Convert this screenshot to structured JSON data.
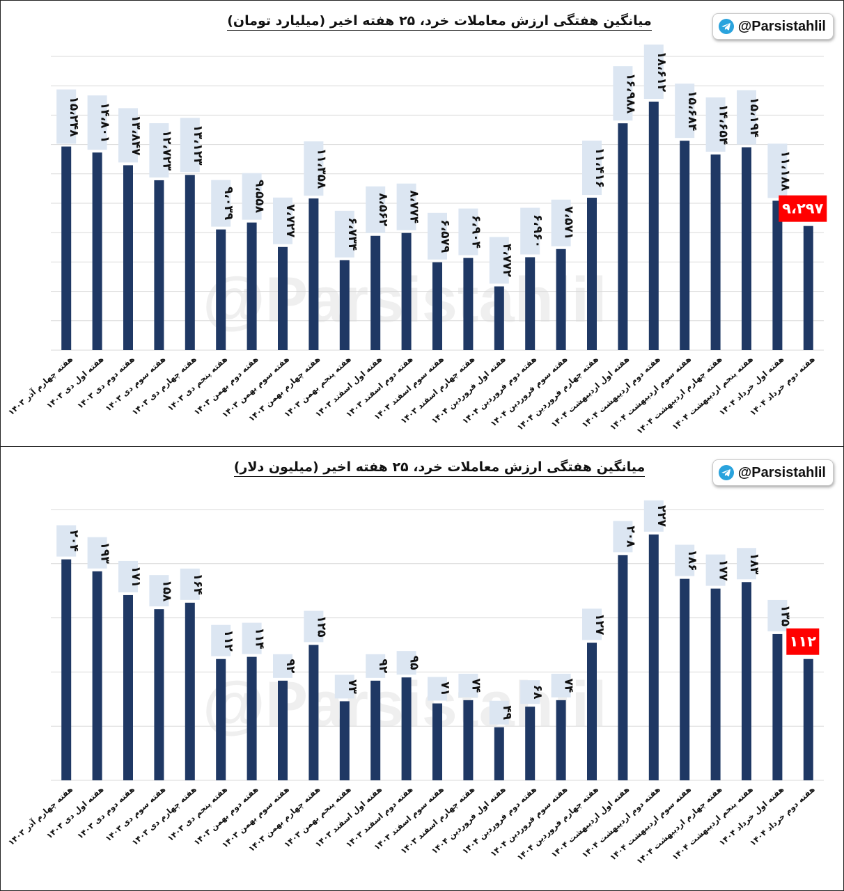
{
  "branding": {
    "handle": "@Parsistahlil",
    "watermark": "@Parsistahlil"
  },
  "colors": {
    "bar": "#1f3864",
    "highlight": "#ff0000",
    "label_bg": "#dce6f2",
    "grid": "#d9d9d9"
  },
  "chart_data": [
    {
      "type": "bar",
      "title": "میانگین هفتگی ارزش معاملات خرد، ۲۵ هفته اخیر (میلیارد تومان)",
      "categories": [
        "هفته چهارم آذر ۱۴۰۳",
        "هفته اول دی ۱۴۰۳",
        "هفته دوم دی ۱۴۰۳",
        "هفته سوم دی ۱۴۰۳",
        "هفته چهارم دی ۱۴۰۳",
        "هفته پنجم دی ۱۴۰۳",
        "هفته دوم بهمن ۱۴۰۳",
        "هفته سوم بهمن ۱۴۰۳",
        "هفته چهارم بهمن ۱۴۰۳",
        "هفته پنجم بهمن ۱۴۰۳",
        "هفته اول اسفند ۱۴۰۳",
        "هفته دوم اسفند ۱۴۰۳",
        "هفته سوم اسفند ۱۴۰۳",
        "هفته چهارم اسفند ۱۴۰۳",
        "هفته اول فروردین ۱۴۰۴",
        "هفته دوم فروردین ۱۴۰۴",
        "هفته سوم فروردین ۱۴۰۴",
        "هفته چهارم فروردین ۱۴۰۴",
        "هفته اول اردیبهشت ۱۴۰۴",
        "هفته دوم اردیبهشت ۱۴۰۴",
        "هفته سوم اردیبهشت ۱۴۰۴",
        "هفته چهارم اردیبهشت ۱۴۰۴",
        "هفته پنجم اردیبهشت ۱۴۰۴",
        "هفته اول خرداد ۱۴۰۴",
        "هفته دوم خرداد ۱۴۰۴"
      ],
      "values": [
        15248,
        14801,
        13847,
        12723,
        13123,
        9039,
        9558,
        7727,
        11358,
        6734,
        8562,
        8774,
        6579,
        6904,
        4772,
        6960,
        7571,
        11416,
        16988,
        18612,
        15684,
        14654,
        15194,
        11188,
        9297
      ],
      "labels": [
        "۱۵،۲۴۸",
        "۱۴،۸۰۱",
        "۱۳،۸۴۷",
        "۱۲،۷۲۳",
        "۱۳،۱۲۳",
        "۹،۰۳۹",
        "۹،۵۵۸",
        "۷،۷۲۷",
        "۱۱،۳۵۸",
        "۶،۷۳۴",
        "۸،۵۶۲",
        "۸،۷۷۴",
        "۶،۵۷۹",
        "۶،۹۰۴",
        "۴،۷۷۲",
        "۶،۹۶۰",
        "۷،۵۷۱",
        "۱۱،۴۱۶",
        "۱۶،۹۸۸",
        "۱۸،۶۱۲",
        "۱۵،۶۸۴",
        "۱۴،۶۵۴",
        "۱۵،۱۹۴",
        "۱۱،۱۸۸",
        "۹،۲۹۷"
      ],
      "highlight_index": 24,
      "ylim": [
        0,
        22000
      ],
      "grid": true
    },
    {
      "type": "bar",
      "title": "میانگین هفتگی ارزش معاملات خرد، ۲۵ هفته اخیر (میلیون دلار)",
      "categories": [
        "هفته چهارم آذر ۱۴۰۳",
        "هفته اول دی ۱۴۰۳",
        "هفته دوم دی ۱۴۰۳",
        "هفته سوم دی ۱۴۰۳",
        "هفته چهارم دی ۱۴۰۳",
        "هفته پنجم دی ۱۴۰۳",
        "هفته دوم بهمن ۱۴۰۳",
        "هفته سوم بهمن ۱۴۰۳",
        "هفته چهارم بهمن ۱۴۰۳",
        "هفته پنجم بهمن ۱۴۰۳",
        "هفته اول اسفند ۱۴۰۳",
        "هفته دوم اسفند ۱۴۰۳",
        "هفته سوم اسفند ۱۴۰۳",
        "هفته چهارم اسفند ۱۴۰۳",
        "هفته اول فروردین ۱۴۰۴",
        "هفته دوم فروردین ۱۴۰۴",
        "هفته سوم فروردین ۱۴۰۴",
        "هفته چهارم فروردین ۱۴۰۴",
        "هفته اول اردیبهشت ۱۴۰۴",
        "هفته دوم اردیبهشت ۱۴۰۴",
        "هفته سوم اردیبهشت ۱۴۰۴",
        "هفته چهارم اردیبهشت ۱۴۰۴",
        "هفته پنجم اردیبهشت ۱۴۰۴",
        "هفته اول خرداد ۱۴۰۴",
        "هفته دوم خرداد ۱۴۰۴"
      ],
      "values": [
        204,
        193,
        171,
        158,
        164,
        112,
        114,
        92,
        125,
        73,
        92,
        95,
        71,
        74,
        49,
        68,
        74,
        127,
        208,
        227,
        186,
        177,
        183,
        135,
        112
      ],
      "labels": [
        "۲۰۴",
        "۱۹۳",
        "۱۷۱",
        "۱۵۸",
        "۱۶۴",
        "۱۱۲",
        "۱۱۴",
        "۹۲",
        "۱۲۵",
        "۷۳",
        "۹۲",
        "۹۵",
        "۷۱",
        "۷۴",
        "۴۹",
        "۶۸",
        "۷۴",
        "۱۲۷",
        "۲۰۸",
        "۲۲۷",
        "۱۸۶",
        "۱۷۷",
        "۱۸۳",
        "۱۳۵",
        "۱۱۲"
      ],
      "highlight_index": 24,
      "ylim": [
        0,
        250
      ],
      "grid": true
    }
  ]
}
